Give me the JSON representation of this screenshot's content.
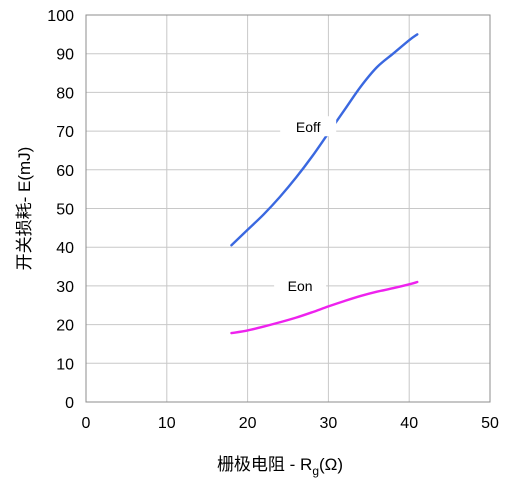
{
  "chart_data": {
    "type": "line",
    "title": "",
    "xlabel": "栅极电阻 - R",
    "xlabel_subscript": "g",
    "xlabel_suffix": "(Ω)",
    "ylabel": "开关损耗- E(mJ)",
    "xlim": [
      0,
      50
    ],
    "ylim": [
      0,
      100
    ],
    "x_ticks": [
      "0",
      "10",
      "20",
      "30",
      "40",
      "50"
    ],
    "y_ticks": [
      "0",
      "10",
      "20",
      "30",
      "40",
      "50",
      "60",
      "70",
      "80",
      "90",
      "100"
    ],
    "grid": true,
    "legend": "none",
    "series": [
      {
        "name": "Eoff",
        "color": "#3a68e0",
        "x": [
          18,
          20,
          22,
          24,
          26,
          28,
          30,
          32,
          34,
          36,
          38,
          40,
          41
        ],
        "y": [
          40.5,
          44.5,
          48.5,
          53,
          58,
          63.5,
          69.5,
          75.5,
          81.5,
          86.5,
          90,
          93.5,
          95
        ]
      },
      {
        "name": "Eon",
        "color": "#ee22ee",
        "x": [
          18,
          20,
          22,
          24,
          26,
          28,
          30,
          32,
          34,
          36,
          38,
          40,
          41
        ],
        "y": [
          17.8,
          18.5,
          19.5,
          20.6,
          21.8,
          23.2,
          24.7,
          26.1,
          27.4,
          28.5,
          29.4,
          30.4,
          31
        ]
      }
    ]
  }
}
